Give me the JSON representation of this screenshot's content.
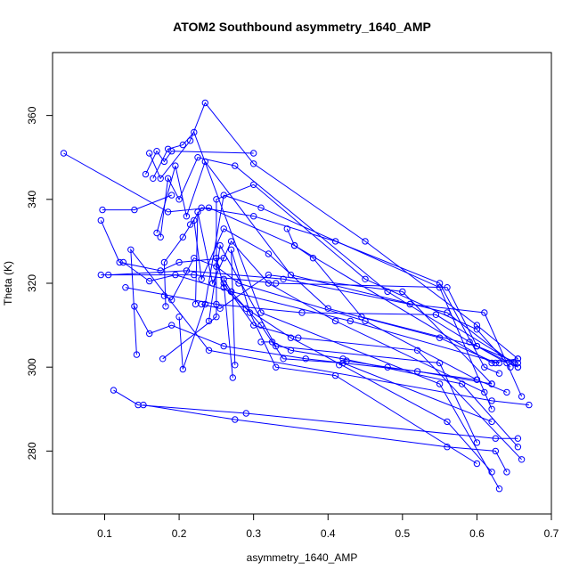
{
  "chart_data": {
    "type": "line",
    "title": "ATOM2 Southbound asymmetry_1640_AMP",
    "xlabel": "asymmetry_1640_AMP",
    "ylabel": "Theta (K)",
    "xlim": [
      0.03,
      0.7
    ],
    "ylim": [
      265,
      375
    ],
    "xticks": [
      0.1,
      0.2,
      0.3,
      0.4,
      0.5,
      0.6,
      0.7
    ],
    "xtick_labels": [
      "0.1",
      "0.2",
      "0.3",
      "0.4",
      "0.5",
      "0.6",
      "0.7"
    ],
    "yticks": [
      280,
      300,
      320,
      340,
      360
    ],
    "ytick_labels": [
      "280",
      "300",
      "320",
      "340",
      "360"
    ],
    "color": "#0000ff",
    "marker": "open-circle",
    "grid": false,
    "legend": "none",
    "series": [
      {
        "x": [
          0.045,
          0.185,
          0.24,
          0.355,
          0.62,
          0.655
        ],
        "y": [
          351,
          337,
          338,
          329,
          301,
          302
        ]
      },
      {
        "x": [
          0.095,
          0.12,
          0.175,
          0.2,
          0.26
        ],
        "y": [
          335,
          325,
          323,
          325,
          326
        ]
      },
      {
        "x": [
          0.097,
          0.14,
          0.19
        ],
        "y": [
          337.5,
          337.5,
          341
        ]
      },
      {
        "x": [
          0.095,
          0.22,
          0.33,
          0.56,
          0.6,
          0.655
        ],
        "y": [
          322,
          322,
          320,
          319,
          305,
          301
        ]
      },
      {
        "x": [
          0.105,
          0.21,
          0.34,
          0.51,
          0.61,
          0.66
        ],
        "y": [
          322,
          323,
          321,
          315,
          313,
          293
        ]
      },
      {
        "x": [
          0.125,
          0.16,
          0.195,
          0.27,
          0.43,
          0.63
        ],
        "y": [
          325,
          320.5,
          322,
          318,
          311,
          301
        ]
      },
      {
        "x": [
          0.128,
          0.25,
          0.365,
          0.545,
          0.65
        ],
        "y": [
          319,
          315,
          313,
          312.5,
          301
        ]
      },
      {
        "x": [
          0.14,
          0.16,
          0.19,
          0.26,
          0.37,
          0.52,
          0.62
        ],
        "y": [
          314.5,
          308,
          310,
          305,
          302,
          299,
          296
        ]
      },
      {
        "x": [
          0.143,
          0.135,
          0.24,
          0.62,
          0.67
        ],
        "y": [
          303,
          328,
          304,
          292,
          291
        ]
      },
      {
        "x": [
          0.112,
          0.145,
          0.29,
          0.625,
          0.655
        ],
        "y": [
          294.5,
          291,
          289,
          283,
          283
        ]
      },
      {
        "x": [
          0.152,
          0.275,
          0.56,
          0.625,
          0.64
        ],
        "y": [
          291,
          287.5,
          281,
          280,
          275
        ]
      },
      {
        "x": [
          0.155,
          0.17,
          0.18,
          0.19,
          0.3
        ],
        "y": [
          346,
          351.5,
          349,
          351.5,
          351
        ]
      },
      {
        "x": [
          0.16,
          0.175,
          0.215,
          0.235,
          0.3,
          0.45,
          0.6,
          0.655
        ],
        "y": [
          351,
          345,
          354,
          363,
          348.5,
          330,
          310,
          302
        ]
      },
      {
        "x": [
          0.165,
          0.185,
          0.205,
          0.22,
          0.31,
          0.55,
          0.63
        ],
        "y": [
          345,
          352,
          353,
          356,
          313,
          296,
          271
        ]
      },
      {
        "x": [
          0.17,
          0.195,
          0.21,
          0.235,
          0.35,
          0.56,
          0.655
        ],
        "y": [
          332,
          348,
          336,
          349,
          322,
          313,
          300
        ]
      },
      {
        "x": [
          0.175,
          0.185,
          0.2,
          0.225,
          0.275,
          0.48,
          0.59,
          0.64
        ],
        "y": [
          331,
          345,
          340,
          350,
          348,
          318,
          306,
          301
        ]
      },
      {
        "x": [
          0.18,
          0.19,
          0.22,
          0.25,
          0.28,
          0.45,
          0.6
        ],
        "y": [
          317,
          316,
          326,
          324,
          320,
          311,
          297
        ]
      },
      {
        "x": [
          0.182,
          0.18,
          0.205,
          0.23,
          0.3,
          0.41,
          0.55,
          0.61,
          0.63
        ],
        "y": [
          314.5,
          325,
          331,
          338,
          336,
          330,
          320,
          300,
          298.5
        ]
      },
      {
        "x": [
          0.178,
          0.25,
          0.25,
          0.3,
          0.45,
          0.6,
          0.645
        ],
        "y": [
          302,
          312,
          340,
          343.5,
          321,
          309,
          300
        ]
      },
      {
        "x": [
          0.2,
          0.205,
          0.235,
          0.26,
          0.31,
          0.55,
          0.62
        ],
        "y": [
          312,
          299.5,
          315,
          341,
          338,
          319,
          290
        ]
      },
      {
        "x": [
          0.215,
          0.22,
          0.23,
          0.26,
          0.32,
          0.4,
          0.55,
          0.625
        ],
        "y": [
          334,
          335,
          321,
          333,
          327,
          314,
          307,
          301
        ]
      },
      {
        "x": [
          0.222,
          0.225,
          0.245,
          0.27,
          0.32,
          0.41,
          0.61
        ],
        "y": [
          315,
          337,
          320,
          330,
          320,
          311,
          294
        ]
      },
      {
        "x": [
          0.23,
          0.255,
          0.32,
          0.5,
          0.62
        ],
        "y": [
          315,
          314,
          322,
          318,
          296
        ]
      },
      {
        "x": [
          0.24,
          0.255,
          0.33,
          0.55,
          0.6
        ],
        "y": [
          311,
          329,
          305,
          301,
          282
        ]
      },
      {
        "x": [
          0.25,
          0.26,
          0.29,
          0.35,
          0.56,
          0.62
        ],
        "y": [
          326,
          319,
          314,
          307,
          287,
          275
        ]
      },
      {
        "x": [
          0.26,
          0.27,
          0.31,
          0.34,
          0.42,
          0.62
        ],
        "y": [
          321,
          318,
          310,
          302,
          301,
          287
        ]
      },
      {
        "x": [
          0.272,
          0.26,
          0.3,
          0.36,
          0.52,
          0.66
        ],
        "y": [
          297.5,
          320,
          310,
          307,
          304,
          278
        ]
      },
      {
        "x": [
          0.275,
          0.27,
          0.295,
          0.33,
          0.41,
          0.6
        ],
        "y": [
          300.5,
          328,
          313,
          300,
          298,
          277
        ]
      },
      {
        "x": [
          0.31,
          0.325,
          0.35,
          0.42,
          0.58,
          0.655
        ],
        "y": [
          306,
          306,
          304,
          302,
          296,
          281
        ]
      },
      {
        "x": [
          0.345,
          0.355,
          0.38,
          0.445,
          0.6,
          0.655
        ],
        "y": [
          333,
          329,
          326,
          312,
          305,
          300
        ]
      },
      {
        "x": [
          0.415,
          0.425,
          0.48,
          0.6,
          0.64
        ],
        "y": [
          300.5,
          301.5,
          300,
          297,
          294
        ]
      }
    ]
  }
}
